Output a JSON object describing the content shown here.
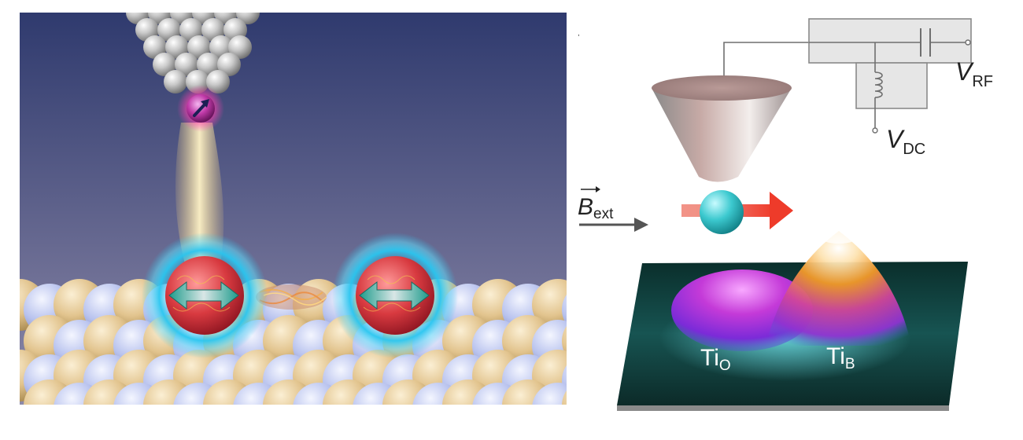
{
  "right_panel": {
    "labels": {
      "vrf": {
        "main": "V",
        "sub": "RF"
      },
      "vdc": {
        "main": "V",
        "sub": "DC"
      },
      "bext": {
        "main": "B",
        "sub": "ext"
      },
      "ti_o": {
        "main": "Ti",
        "sub": "O"
      },
      "ti_b": {
        "main": "Ti",
        "sub": "B"
      }
    }
  },
  "colors": {
    "sky_top": "#2f3a6e",
    "sky_bottom": "#8a86a6",
    "lattice_blue": "#b9c3ee",
    "lattice_gold": "#e2c48e",
    "glow_cyan": "#29c6f0",
    "atom_red": "#d83a40",
    "arrow_teal": "#2aa89a",
    "cone": "#c7aaa6",
    "surface": "#0f3a36",
    "peak_magenta": "#c43ad8",
    "peak_orange": "#f39a2a",
    "spin_red": "#ee3b2a"
  }
}
